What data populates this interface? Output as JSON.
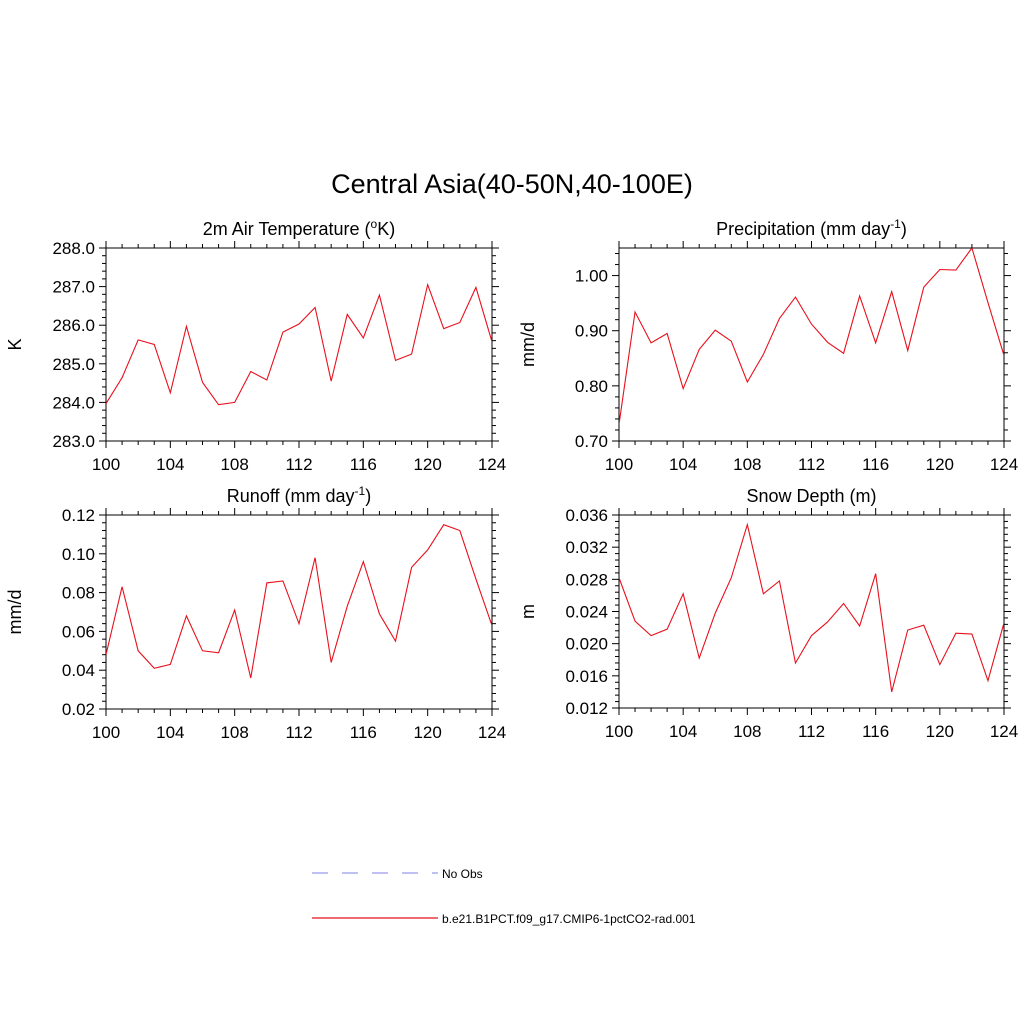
{
  "page_title": "Central Asia(40-50N,40-100E)",
  "legend": [
    {
      "label": "No Obs",
      "color": "#9a9aee",
      "dash": true
    },
    {
      "label": "b.e21.B1PCT.f09_g17.CMIP6-1pctCO2-rad.001",
      "color": "#e8101c",
      "dash": false
    }
  ],
  "chart_data": [
    {
      "type": "line",
      "title": "2m Air Temperature (",
      "title_sup": "o",
      "title_tail": "K)",
      "ylabel": "K",
      "xlim": [
        100,
        124
      ],
      "ylim": [
        283.0,
        288.0
      ],
      "xticks": [
        100,
        104,
        108,
        112,
        116,
        120,
        124
      ],
      "yticks": [
        283.0,
        284.0,
        285.0,
        286.0,
        287.0,
        288.0
      ],
      "ytick_labels": [
        "283.0",
        "284.0",
        "285.0",
        "286.0",
        "287.0",
        "288.0"
      ],
      "series": [
        {
          "x": [
            100,
            101,
            102,
            103,
            104,
            105,
            106,
            107,
            108,
            109,
            110,
            111,
            112,
            113,
            114,
            115,
            116,
            117,
            118,
            119,
            120,
            121,
            122,
            123,
            124
          ],
          "y": [
            283.97,
            284.64,
            285.62,
            285.5,
            284.25,
            285.97,
            284.52,
            283.94,
            284.0,
            284.8,
            284.58,
            285.82,
            286.03,
            286.46,
            284.55,
            286.28,
            285.67,
            286.78,
            285.09,
            285.25,
            287.05,
            285.91,
            286.07,
            286.98,
            285.57
          ],
          "color": "#e8101c"
        }
      ]
    },
    {
      "type": "line",
      "title": "Precipitation (mm day",
      "title_sup": "-1",
      "title_tail": ")",
      "ylabel": "mm/d",
      "xlim": [
        100,
        124
      ],
      "ylim": [
        0.7,
        1.05
      ],
      "xticks": [
        100,
        104,
        108,
        112,
        116,
        120,
        124
      ],
      "yticks": [
        0.7,
        0.8,
        0.9,
        1.0
      ],
      "ytick_labels": [
        "0.70",
        "0.80",
        "0.90",
        "1.00"
      ],
      "series": [
        {
          "x": [
            100,
            101,
            102,
            103,
            104,
            105,
            106,
            107,
            108,
            109,
            110,
            111,
            112,
            113,
            114,
            115,
            116,
            117,
            118,
            119,
            120,
            121,
            122,
            123,
            124
          ],
          "y": [
            0.73,
            0.934,
            0.878,
            0.895,
            0.795,
            0.866,
            0.901,
            0.881,
            0.807,
            0.857,
            0.922,
            0.961,
            0.912,
            0.879,
            0.859,
            0.963,
            0.878,
            0.971,
            0.864,
            0.979,
            1.011,
            1.01,
            1.05,
            0.951,
            0.855
          ],
          "color": "#e8101c"
        }
      ]
    },
    {
      "type": "line",
      "title": "Runoff (mm day",
      "title_sup": "-1",
      "title_tail": ")",
      "ylabel": "mm/d",
      "xlim": [
        100,
        124
      ],
      "ylim": [
        0.02,
        0.12
      ],
      "xticks": [
        100,
        104,
        108,
        112,
        116,
        120,
        124
      ],
      "yticks": [
        0.02,
        0.04,
        0.06,
        0.08,
        0.1,
        0.12
      ],
      "ytick_labels": [
        "0.02",
        "0.04",
        "0.06",
        "0.08",
        "0.10",
        "0.12"
      ],
      "series": [
        {
          "x": [
            100,
            101,
            102,
            103,
            104,
            105,
            106,
            107,
            108,
            109,
            110,
            111,
            112,
            113,
            114,
            115,
            116,
            117,
            118,
            119,
            120,
            121,
            122,
            123,
            124
          ],
          "y": [
            0.048,
            0.083,
            0.05,
            0.041,
            0.043,
            0.068,
            0.05,
            0.049,
            0.071,
            0.036,
            0.085,
            0.086,
            0.064,
            0.098,
            0.044,
            0.073,
            0.096,
            0.069,
            0.055,
            0.093,
            0.102,
            0.115,
            0.112,
            0.087,
            0.063
          ],
          "color": "#e8101c"
        }
      ]
    },
    {
      "type": "line",
      "title": "Snow Depth (m)",
      "title_sup": "",
      "title_tail": "",
      "ylabel": "m",
      "xlim": [
        100,
        124
      ],
      "ylim": [
        0.012,
        0.036
      ],
      "xticks": [
        100,
        104,
        108,
        112,
        116,
        120,
        124
      ],
      "yticks": [
        0.012,
        0.016,
        0.02,
        0.024,
        0.028,
        0.032,
        0.036
      ],
      "ytick_labels": [
        "0.012",
        "0.016",
        "0.020",
        "0.024",
        "0.028",
        "0.032",
        "0.036"
      ],
      "series": [
        {
          "x": [
            100,
            101,
            102,
            103,
            104,
            105,
            106,
            107,
            108,
            109,
            110,
            111,
            112,
            113,
            114,
            115,
            116,
            117,
            118,
            119,
            120,
            121,
            122,
            123,
            124
          ],
          "y": [
            0.0282,
            0.0228,
            0.021,
            0.0218,
            0.0262,
            0.0182,
            0.0238,
            0.0282,
            0.0348,
            0.0262,
            0.0278,
            0.0176,
            0.021,
            0.0227,
            0.025,
            0.0222,
            0.0287,
            0.014,
            0.0217,
            0.0223,
            0.0174,
            0.0213,
            0.0212,
            0.0154,
            0.0226
          ],
          "color": "#e8101c"
        }
      ]
    }
  ]
}
